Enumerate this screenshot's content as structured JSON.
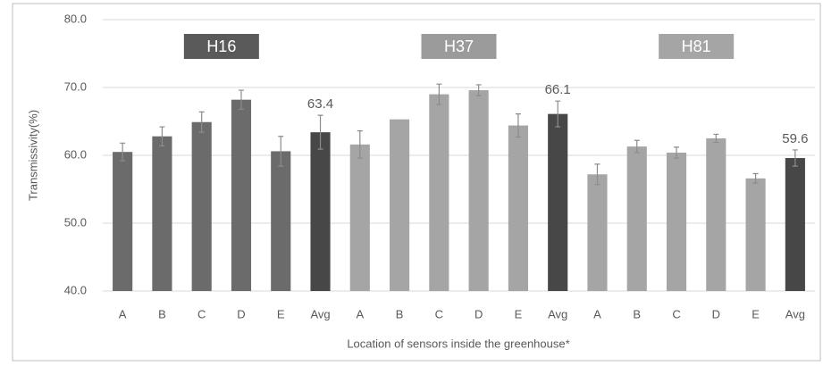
{
  "chart_data": {
    "type": "bar",
    "y_label": "Transmissivity(%)",
    "x_label": "Location of sensors inside the greenhouse*",
    "categories": [
      "A",
      "B",
      "C",
      "D",
      "E",
      "Avg",
      "A",
      "B",
      "C",
      "D",
      "E",
      "Avg",
      "A",
      "B",
      "C",
      "D",
      "E",
      "Avg"
    ],
    "values": [
      60.5,
      62.8,
      64.9,
      68.2,
      60.6,
      63.4,
      61.6,
      65.3,
      69.0,
      69.6,
      64.4,
      66.1,
      57.2,
      61.3,
      60.4,
      62.5,
      56.6,
      59.6
    ],
    "errors": [
      1.3,
      1.4,
      1.5,
      1.4,
      2.2,
      2.5,
      2.0,
      0,
      1.5,
      0.8,
      1.7,
      1.9,
      1.5,
      0.9,
      0.8,
      0.6,
      0.7,
      1.2
    ],
    "colors": [
      "#6b6b6b",
      "#6b6b6b",
      "#6b6b6b",
      "#6b6b6b",
      "#6b6b6b",
      "#474747",
      "#a5a5a5",
      "#a5a5a5",
      "#a5a5a5",
      "#a5a5a5",
      "#a5a5a5",
      "#474747",
      "#a5a5a5",
      "#a5a5a5",
      "#a5a5a5",
      "#a5a5a5",
      "#a5a5a5",
      "#474747"
    ],
    "labeled": [
      5,
      11,
      17
    ],
    "groups": [
      {
        "label": "H16",
        "color": "#5a5a5a"
      },
      {
        "label": "H37",
        "color": "#9b9b9b"
      },
      {
        "label": "H81",
        "color": "#a5a5a5"
      }
    ],
    "ylim": [
      40,
      80
    ],
    "yticks": [
      {
        "value": 40,
        "label": "40.0"
      },
      {
        "value": 50,
        "label": "50.0"
      },
      {
        "value": 60,
        "label": "60.0"
      },
      {
        "value": 70,
        "label": "70.0"
      },
      {
        "value": 80,
        "label": "80.0"
      }
    ],
    "grid": true
  }
}
